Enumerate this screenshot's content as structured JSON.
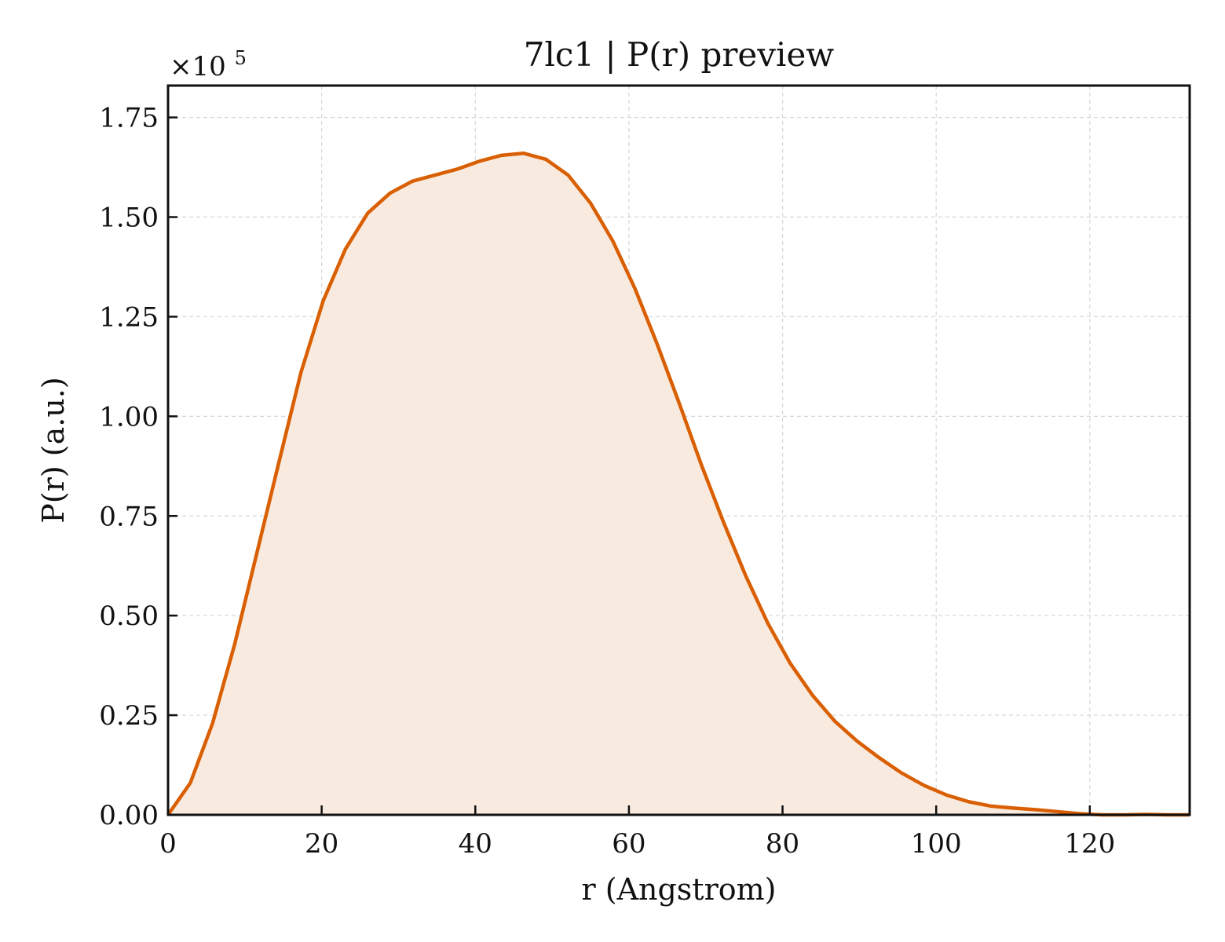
{
  "chart_data": {
    "type": "area",
    "title": "7lc1 | P(r) preview",
    "xlabel": "r (Angstrom)",
    "ylabel": "P(r) (a.u.)",
    "y_offset_label": "×10",
    "y_offset_exponent": "5",
    "xlim": [
      0,
      133
    ],
    "ylim": [
      0,
      1.83
    ],
    "y_scale_multiplier": 100000,
    "x_ticks": [
      0,
      20,
      40,
      60,
      80,
      100,
      120
    ],
    "x_tick_labels": [
      "0",
      "20",
      "40",
      "60",
      "80",
      "100",
      "120"
    ],
    "y_ticks": [
      0,
      0.25,
      0.5,
      0.75,
      1.0,
      1.25,
      1.5,
      1.75
    ],
    "y_tick_labels": [
      "0.00",
      "0.25",
      "0.50",
      "0.75",
      "1.00",
      "1.25",
      "1.50",
      "1.75"
    ],
    "grid": true,
    "legend": "none",
    "colors": {
      "line": "#d95f02",
      "fill": "#f9eadf",
      "grid": "#d6d6d6",
      "axis": "#111111"
    },
    "series": [
      {
        "x": [
          0,
          2.9,
          5.8,
          8.7,
          11.6,
          14.5,
          17.3,
          20.2,
          23.1,
          26.0,
          28.9,
          31.8,
          34.7,
          37.6,
          40.5,
          43.4,
          46.3,
          49.2,
          52.1,
          55.0,
          57.9,
          60.8,
          63.7,
          66.6,
          69.4,
          72.3,
          75.2,
          78.1,
          81.0,
          83.9,
          86.8,
          89.7,
          92.6,
          95.5,
          98.4,
          101.3,
          104.2,
          107.1,
          110.0,
          112.9,
          115.8,
          118.7,
          121.6,
          124.4,
          127.3,
          130.2,
          133.0
        ],
        "y": [
          0.0,
          0.08,
          0.23,
          0.43,
          0.66,
          0.89,
          1.11,
          1.29,
          1.42,
          1.51,
          1.56,
          1.59,
          1.605,
          1.62,
          1.64,
          1.655,
          1.66,
          1.645,
          1.605,
          1.535,
          1.44,
          1.32,
          1.18,
          1.03,
          0.88,
          0.735,
          0.6,
          0.48,
          0.38,
          0.3,
          0.235,
          0.185,
          0.143,
          0.105,
          0.074,
          0.05,
          0.033,
          0.022,
          0.017,
          0.013,
          0.008,
          0.003,
          0.0,
          0.0,
          0.001,
          0.0,
          0.0
        ]
      }
    ]
  }
}
